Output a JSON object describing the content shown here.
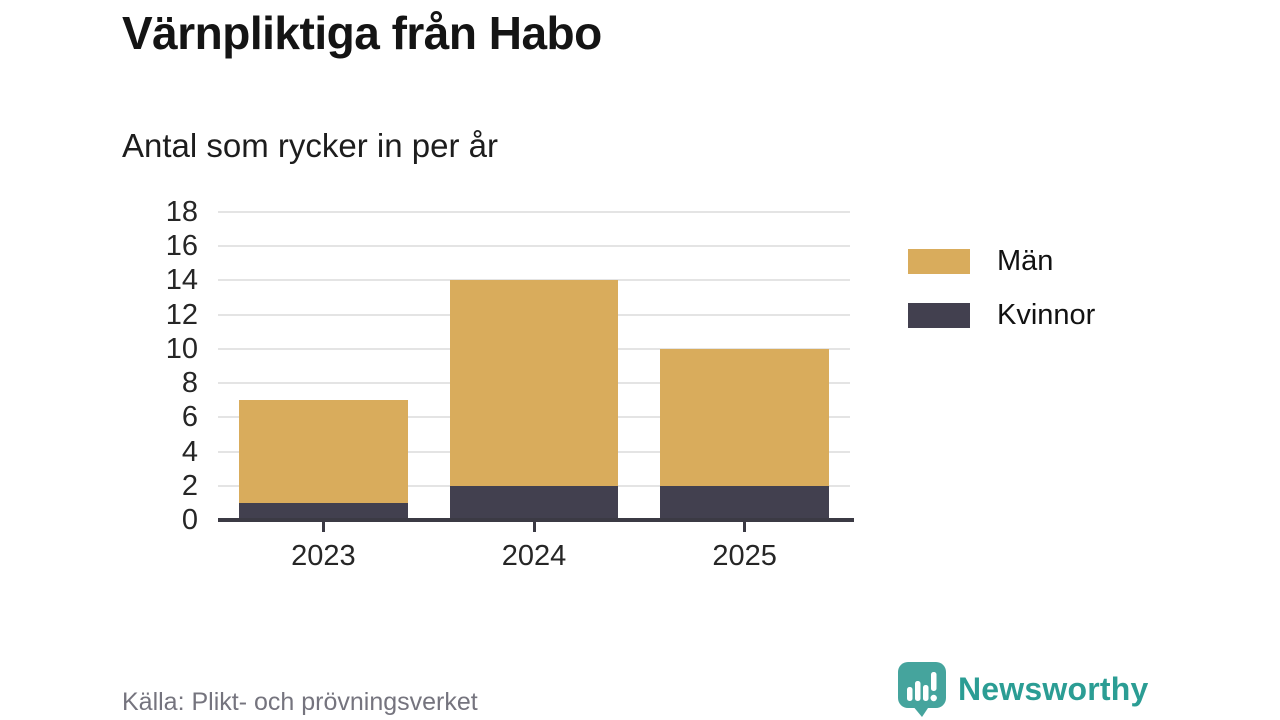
{
  "header": {
    "title": "Värnpliktiga från Habo",
    "subtitle": "Antal som rycker in per år"
  },
  "footer": {
    "source": "Källa: Plikt- och prövningsverket",
    "brand": "Newsworthy"
  },
  "colors": {
    "men_gold": "#D9AC5C",
    "women_dark": "#42404F",
    "gridline": "#E4E4E4",
    "axis": "#3B3A44",
    "logo_teal": "#45A49D",
    "brand_text_teal": "#2B9D94",
    "source_gray": "#75747E"
  },
  "chart_data": {
    "type": "bar",
    "stacked": true,
    "title": "Värnpliktiga från Habo",
    "subtitle": "Antal som rycker in per år",
    "categories": [
      "2023",
      "2024",
      "2025"
    ],
    "series": [
      {
        "name": "Män",
        "color": "#D9AC5C",
        "values": [
          6,
          12,
          8
        ]
      },
      {
        "name": "Kvinnor",
        "color": "#42404F",
        "values": [
          1,
          2,
          2
        ]
      }
    ],
    "stack_order_bottom_to_top": [
      "Kvinnor",
      "Män"
    ],
    "totals": [
      7,
      14,
      10
    ],
    "xlabel": "",
    "ylabel": "",
    "ylim": [
      0,
      18
    ],
    "y_ticks": [
      0,
      2,
      4,
      6,
      8,
      10,
      12,
      14,
      16,
      18
    ],
    "grid": "horizontal",
    "legend_position": "right"
  }
}
